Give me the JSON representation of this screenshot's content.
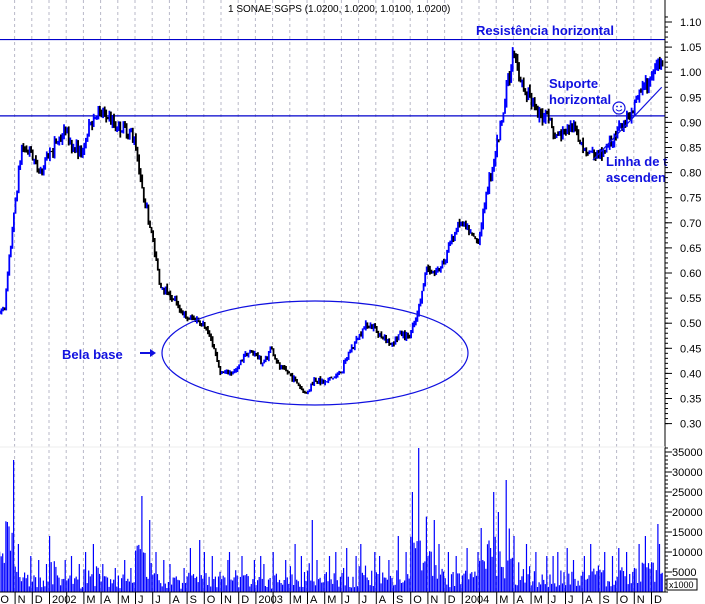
{
  "chart_data": {
    "type": "bar",
    "title": "1 SONAE SGPS (1.0200, 1.0200, 1.0100, 1.0200)",
    "price_axis": {
      "ylim": [
        0.3,
        1.1
      ],
      "ticks": [
        "1.10",
        "1.05",
        "1.00",
        "0.95",
        "0.90",
        "0.85",
        "0.80",
        "0.75",
        "0.70",
        "0.65",
        "0.60",
        "0.55",
        "0.50",
        "0.45",
        "0.40",
        "0.35",
        "0.30"
      ],
      "position": "right"
    },
    "volume_axis": {
      "ylim": [
        0,
        35000
      ],
      "ticks": [
        "35000",
        "30000",
        "25000",
        "20000",
        "15000",
        "10000",
        "5000"
      ],
      "unit_label": "x1000",
      "position": "right"
    },
    "x_axis": {
      "labels": [
        "O",
        "N",
        "D",
        "2002",
        "",
        "M",
        "A",
        "M",
        "J",
        "J",
        "A",
        "S",
        "O",
        "N",
        "D",
        "2003",
        "",
        "M",
        "A",
        "M",
        "J",
        "J",
        "A",
        "S",
        "O",
        "N",
        "D",
        "2004",
        "",
        "M",
        "A",
        "M",
        "J",
        "J",
        "A",
        "S",
        "O",
        "N",
        "D"
      ]
    },
    "grid": {
      "vertical": true,
      "horizontal": false
    },
    "colors": {
      "up": "#0000ff",
      "down": "#000000",
      "volume": "#0000ff",
      "annotation": "#1010e0",
      "grid": "#b8b8c8"
    },
    "dates": [
      "2001-10-01",
      "2001-10-15",
      "2001-11-01",
      "2001-11-15",
      "2001-12-01",
      "2001-12-15",
      "2002-01-01",
      "2002-01-15",
      "2002-02-01",
      "2002-02-15",
      "2002-03-01",
      "2002-03-15",
      "2002-04-01",
      "2002-04-15",
      "2002-05-01",
      "2002-05-15",
      "2002-06-01",
      "2002-06-15",
      "2002-07-01",
      "2002-07-15",
      "2002-08-01",
      "2002-08-15",
      "2002-09-01",
      "2002-09-15",
      "2002-10-01",
      "2002-10-15",
      "2002-11-01",
      "2002-11-15",
      "2002-12-01",
      "2002-12-15",
      "2003-01-01",
      "2003-01-15",
      "2003-02-01",
      "2003-02-15",
      "2003-03-01",
      "2003-03-15",
      "2003-04-01",
      "2003-04-15",
      "2003-05-01",
      "2003-05-15",
      "2003-06-01",
      "2003-06-15",
      "2003-07-01",
      "2003-07-15",
      "2003-08-01",
      "2003-08-15",
      "2003-09-01",
      "2003-09-15",
      "2003-10-01",
      "2003-10-15",
      "2003-11-01",
      "2003-11-15",
      "2003-12-01",
      "2003-12-15",
      "2004-01-01",
      "2004-01-15",
      "2004-02-01",
      "2004-02-15",
      "2004-03-01",
      "2004-03-15",
      "2004-04-01",
      "2004-04-15",
      "2004-05-01",
      "2004-05-15",
      "2004-06-01",
      "2004-06-15",
      "2004-07-01",
      "2004-07-15",
      "2004-08-01",
      "2004-08-15",
      "2004-09-01",
      "2004-09-15",
      "2004-10-01",
      "2004-10-15",
      "2004-11-01",
      "2004-11-15",
      "2004-12-01",
      "2004-12-15"
    ],
    "close": [
      0.53,
      0.72,
      0.85,
      0.84,
      0.8,
      0.83,
      0.86,
      0.88,
      0.85,
      0.84,
      0.9,
      0.92,
      0.91,
      0.89,
      0.89,
      0.87,
      0.77,
      0.68,
      0.58,
      0.56,
      0.54,
      0.51,
      0.51,
      0.5,
      0.47,
      0.4,
      0.4,
      0.41,
      0.44,
      0.44,
      0.42,
      0.45,
      0.41,
      0.4,
      0.38,
      0.36,
      0.39,
      0.38,
      0.39,
      0.4,
      0.44,
      0.47,
      0.5,
      0.49,
      0.47,
      0.46,
      0.48,
      0.47,
      0.52,
      0.61,
      0.6,
      0.62,
      0.67,
      0.7,
      0.68,
      0.66,
      0.76,
      0.84,
      0.92,
      1.04,
      0.98,
      0.95,
      0.91,
      0.92,
      0.87,
      0.88,
      0.89,
      0.86,
      0.84,
      0.83,
      0.85,
      0.87,
      0.9,
      0.92,
      0.96,
      0.99,
      1.02,
      1.02
    ],
    "volume": [
      22000,
      33000,
      12000,
      9000,
      8000,
      7000,
      14000,
      8000,
      9000,
      7000,
      10000,
      12000,
      7000,
      6000,
      8000,
      6000,
      24000,
      18000,
      10000,
      8000,
      7000,
      6000,
      11000,
      13000,
      10000,
      9000,
      8000,
      10000,
      9000,
      8000,
      9000,
      7000,
      10000,
      8000,
      12000,
      9000,
      18000,
      8000,
      9000,
      10000,
      11000,
      9000,
      12000,
      10000,
      9000,
      8000,
      14000,
      10000,
      25000,
      36000,
      18000,
      12000,
      10000,
      9000,
      11000,
      10000,
      16000,
      25000,
      20000,
      28000,
      14000,
      12000,
      10000,
      9000,
      9000,
      10000,
      11000,
      8000,
      9000,
      12000,
      10000,
      9000,
      11000,
      10000,
      12000,
      14000,
      17000,
      12000
    ],
    "resistance_level": 1.065,
    "support_level": 0.913,
    "trendline": [
      {
        "date": "2004-08-20",
        "price": 0.825
      },
      {
        "date": "2004-12-20",
        "price": 0.97
      }
    ],
    "annotations": {
      "resistance": "Resistência horizontal",
      "support_line1": "Suporte",
      "support_line2": "horizontal",
      "trend_line1": "Linha de t",
      "trend_line2": "ascenden",
      "base": "Bela base"
    }
  }
}
